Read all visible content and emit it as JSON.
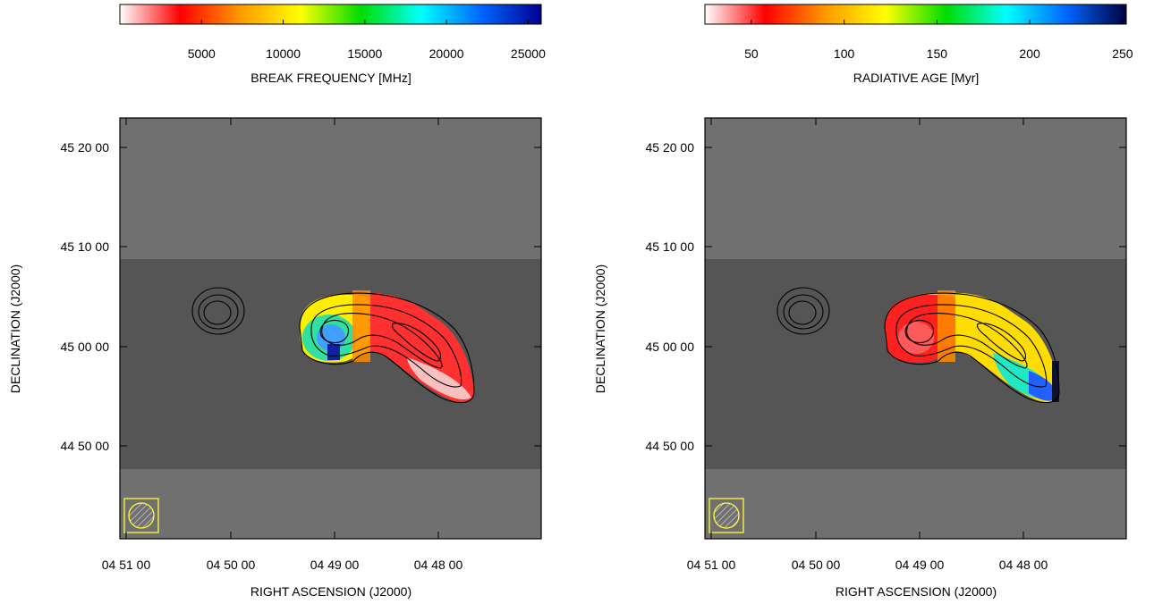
{
  "chart_data": [
    {
      "type": "heatmap",
      "title": "",
      "colorbar": {
        "label": "BREAK FREQUENCY [MHz]",
        "range": [
          0,
          25800
        ],
        "ticks": [
          5000,
          10000,
          15000,
          20000,
          25000
        ],
        "tick_labels": [
          "5000",
          "10000",
          "15000",
          "20000",
          "25000"
        ],
        "colormap": [
          "#ffffff",
          "#ff0000",
          "#ff9900",
          "#ffff00",
          "#00dd00",
          "#00ffff",
          "#0066ff",
          "#000090"
        ]
      },
      "xlabel": "RIGHT ASCENSION  (J2000)",
      "ylabel": "DECLINATION  (J2000)",
      "x_ticks": [
        "04 51 00",
        "04 50 00",
        "04 49 00",
        "04 48 00"
      ],
      "y_ticks": [
        "45 20 00",
        "45 10 00",
        "45 00 00",
        "44 50 00"
      ],
      "region_values": {
        "western_lobe_outer": 8000,
        "western_lobe_core": 21000,
        "western_lobe_south_tip": 25000,
        "eastern_tail": 2000,
        "tail_end": 500
      },
      "beam": "hatched circle in box, bottom-left",
      "grid": false
    },
    {
      "type": "heatmap",
      "title": "",
      "colorbar": {
        "label": "RADIATIVE AGE [Myr]",
        "range": [
          25,
          252
        ],
        "ticks": [
          50,
          100,
          150,
          200,
          250
        ],
        "tick_labels": [
          "50",
          "100",
          "150",
          "200",
          "250"
        ],
        "colormap": [
          "#ffffff",
          "#ff0000",
          "#ff9900",
          "#ffff00",
          "#00dd00",
          "#00ffff",
          "#0066ff",
          "#000040"
        ]
      },
      "xlabel": "RIGHT ASCENSION  (J2000)",
      "ylabel": "DECLINATION  (J2000)",
      "x_ticks": [
        "04 51 00",
        "04 50 00",
        "04 49 00",
        "04 48 00"
      ],
      "y_ticks": [
        "45 20 00",
        "45 10 00",
        "45 00 00",
        "44 50 00"
      ],
      "region_values": {
        "western_lobe_core": 35,
        "western_lobe_outer": 45,
        "eastern_tail": 110,
        "tail_middle": 150,
        "tail_end": 220
      },
      "beam": "hatched circle in box, bottom-left",
      "grid": false
    }
  ]
}
